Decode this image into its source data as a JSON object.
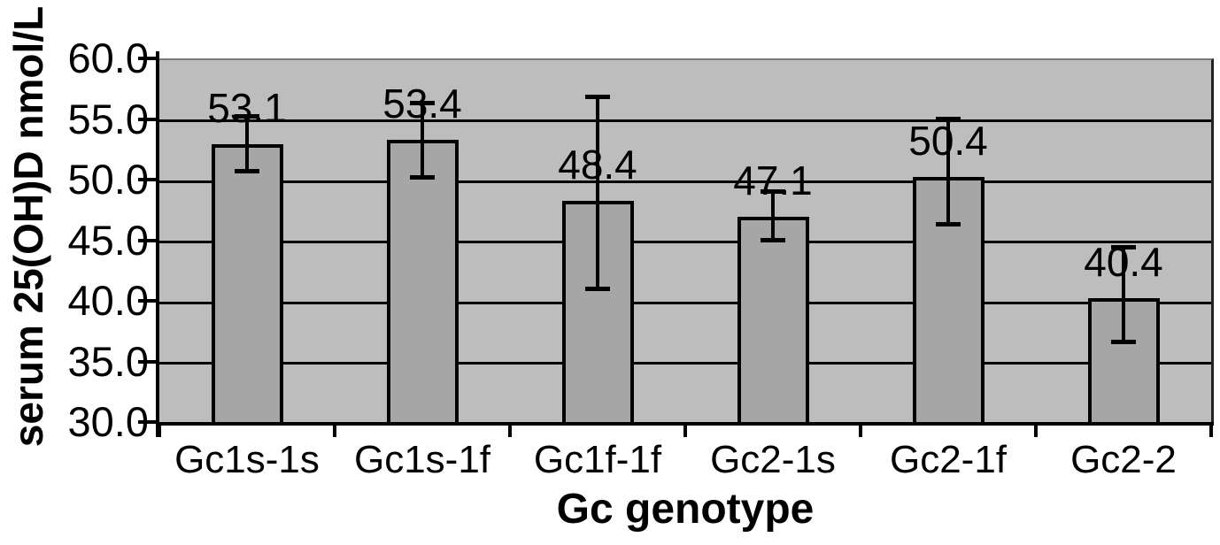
{
  "chart_data": {
    "type": "bar",
    "title": "",
    "xlabel": "Gc genotype",
    "ylabel": "serum 25(OH)D nmol/L",
    "categories": [
      "Gc1s-1s",
      "Gc1s-1f",
      "Gc1f-1f",
      "Gc2-1s",
      "Gc2-1f",
      "Gc2-2"
    ],
    "values": [
      53.1,
      53.4,
      48.4,
      47.1,
      50.4,
      40.4
    ],
    "value_labels": [
      "53.1",
      "53.4",
      "48.4",
      "47.1",
      "50.4",
      "40.4"
    ],
    "error_low": [
      50.8,
      50.3,
      41.1,
      45.1,
      46.4,
      36.7
    ],
    "error_high": [
      55.4,
      56.5,
      57.0,
      49.2,
      55.2,
      44.6
    ],
    "ylim": [
      30.0,
      60.0
    ],
    "ytick_step": 5.0,
    "yticks": [
      "60.0",
      "55.0",
      "50.0",
      "45.0",
      "40.0",
      "35.0",
      "30.0"
    ],
    "grid": "horizontal-gridlines-on",
    "legend": "none",
    "colors": {
      "page_background": "#ffffff",
      "plot_background": "#bdbdbd",
      "bar_fill": "#a6a6a6",
      "bar_border": "#000000",
      "gridline": "#000000",
      "error_bar": "#000000",
      "axis_line": "#000000",
      "text": "#000000"
    }
  }
}
